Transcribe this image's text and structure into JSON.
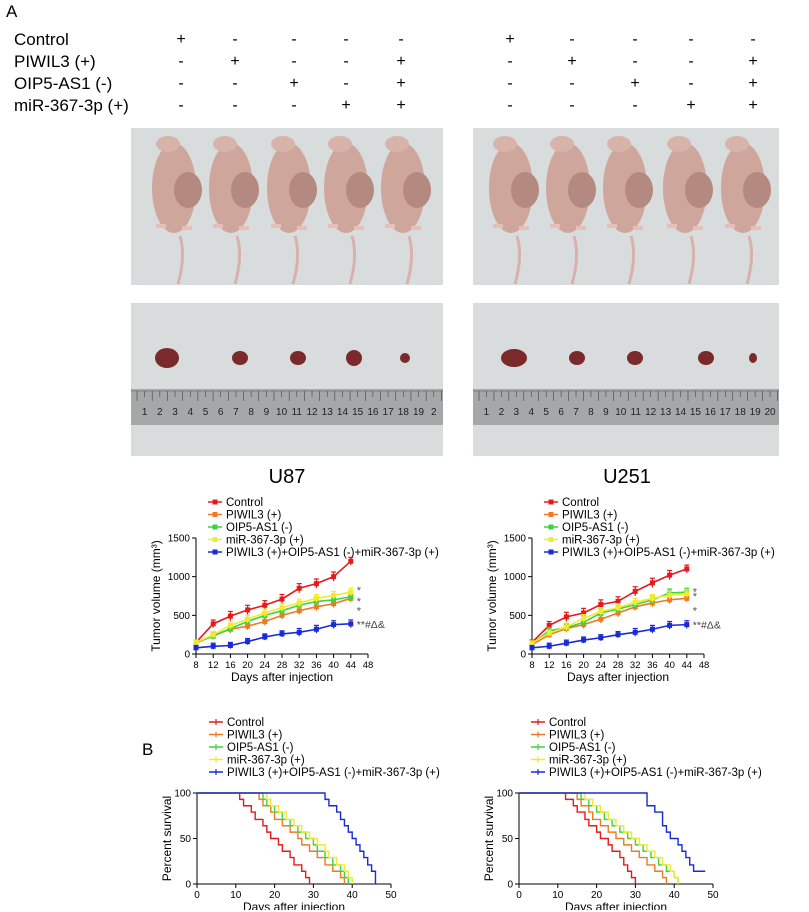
{
  "panel_a_label": "A",
  "panel_b_label": "B",
  "groups_table": {
    "rows": [
      "Control",
      "PIWIL3 (+)",
      "OIP5-AS1 (-)",
      "miR-367-3p (+)"
    ],
    "columns": [
      [
        "+",
        "-",
        "-",
        "-"
      ],
      [
        "-",
        "+",
        "-",
        "-"
      ],
      [
        "-",
        "-",
        "+",
        "-"
      ],
      [
        "-",
        "-",
        "-",
        "+"
      ],
      [
        "-",
        "+",
        "+",
        "+"
      ]
    ]
  },
  "cell_lines": [
    "U87",
    "U251"
  ],
  "photos": {
    "mice_photo_note": "nude mice with xenograft tumors",
    "tumor_photo_note": "excised tumors next to ruler",
    "ruler_numbers_u87": [
      "1",
      "2",
      "3",
      "4",
      "5",
      "6",
      "7",
      "8",
      "9",
      "10",
      "11",
      "12",
      "13",
      "14",
      "15",
      "16",
      "17",
      "18",
      "19",
      "2"
    ],
    "ruler_numbers_u251": [
      "1",
      "2",
      "3",
      "4",
      "5",
      "6",
      "7",
      "8",
      "9",
      "10",
      "11",
      "12",
      "13",
      "14",
      "15",
      "16",
      "17",
      "18",
      "19",
      "20"
    ]
  },
  "colors": {
    "control": "#e41a1c",
    "piwil3": "#f07a23",
    "oip5": "#3fd33f",
    "mir": "#f2ea2b",
    "combo": "#1a2bd6",
    "photo_bg": "#d9dcdc",
    "tumor": "#7a2a2a",
    "ruler": "#a4a8a8"
  },
  "chart_data": [
    {
      "id": "u87_volume",
      "type": "line",
      "title": "U87",
      "xlabel": "Days after injection",
      "ylabel": "Tumor volume (mm³)",
      "xlim": [
        8,
        48
      ],
      "ylim": [
        0,
        1500
      ],
      "xticks": [
        "8",
        "12",
        "16",
        "20",
        "24",
        "28",
        "32",
        "36",
        "40",
        "44",
        "48"
      ],
      "yticks": [
        "0",
        "500",
        "1000",
        "1500"
      ],
      "x": [
        8,
        12,
        16,
        20,
        24,
        28,
        32,
        36,
        40,
        44
      ],
      "series": [
        {
          "name": "Control",
          "values": [
            150,
            390,
            490,
            570,
            630,
            710,
            850,
            910,
            1000,
            1200
          ],
          "error": [
            30,
            50,
            60,
            60,
            60,
            60,
            60,
            60,
            60,
            50
          ]
        },
        {
          "name": "PIWIL3 (+)",
          "values": [
            140,
            240,
            320,
            360,
            420,
            500,
            560,
            610,
            650,
            720
          ],
          "error": [
            30,
            40,
            50,
            50,
            50,
            50,
            50,
            50,
            50,
            50
          ]
        },
        {
          "name": "OIP5-AS1 (-)",
          "values": [
            150,
            230,
            330,
            420,
            500,
            560,
            630,
            680,
            700,
            740
          ],
          "error": [
            30,
            40,
            50,
            50,
            50,
            50,
            50,
            50,
            50,
            50
          ]
        },
        {
          "name": "miR-367-3p (+)",
          "values": [
            150,
            250,
            370,
            450,
            530,
            600,
            660,
            720,
            760,
            800
          ],
          "error": [
            30,
            40,
            50,
            50,
            50,
            50,
            50,
            50,
            50,
            50
          ]
        },
        {
          "name": "PIWIL3 (+)+OIP5-AS1 (-)+miR-367-3p (+)",
          "values": [
            80,
            100,
            110,
            160,
            220,
            260,
            280,
            320,
            380,
            390
          ],
          "error": [
            30,
            40,
            40,
            40,
            40,
            40,
            50,
            50,
            50,
            50
          ]
        }
      ],
      "annotations": [
        "*",
        "*",
        "*",
        "**#Δ&"
      ]
    },
    {
      "id": "u251_volume",
      "type": "line",
      "title": "U251",
      "xlabel": "Days after injection",
      "ylabel": "Tumor volume (mm³)",
      "xlim": [
        8,
        48
      ],
      "ylim": [
        0,
        1500
      ],
      "xticks": [
        "8",
        "12",
        "16",
        "20",
        "24",
        "28",
        "32",
        "36",
        "40",
        "44",
        "48"
      ],
      "yticks": [
        "0",
        "500",
        "1000",
        "1500"
      ],
      "x": [
        8,
        12,
        16,
        20,
        24,
        28,
        32,
        36,
        40,
        44
      ],
      "series": [
        {
          "name": "Control",
          "values": [
            150,
            370,
            480,
            530,
            640,
            680,
            810,
            920,
            1020,
            1100
          ],
          "error": [
            30,
            50,
            60,
            60,
            60,
            60,
            60,
            60,
            60,
            50
          ]
        },
        {
          "name": "PIWIL3 (+)",
          "values": [
            120,
            250,
            330,
            380,
            450,
            530,
            610,
            660,
            700,
            720
          ],
          "error": [
            30,
            40,
            50,
            50,
            50,
            50,
            50,
            50,
            50,
            50
          ]
        },
        {
          "name": "OIP5-AS1 (-)",
          "values": [
            130,
            300,
            340,
            410,
            530,
            580,
            640,
            700,
            790,
            800
          ],
          "error": [
            30,
            40,
            50,
            50,
            50,
            50,
            50,
            50,
            50,
            50
          ]
        },
        {
          "name": "miR-367-3p (+)",
          "values": [
            140,
            270,
            350,
            460,
            550,
            600,
            670,
            720,
            760,
            780
          ],
          "error": [
            30,
            40,
            50,
            50,
            50,
            50,
            50,
            50,
            50,
            50
          ]
        },
        {
          "name": "PIWIL3 (+)+OIP5-AS1 (-)+miR-367-3p (+)",
          "values": [
            80,
            100,
            140,
            180,
            210,
            250,
            280,
            320,
            370,
            380
          ],
          "error": [
            30,
            40,
            40,
            40,
            40,
            40,
            50,
            50,
            50,
            50
          ]
        }
      ],
      "annotations": [
        "*",
        "*",
        "*",
        "**#Δ&"
      ]
    },
    {
      "id": "u87_survival",
      "type": "line",
      "subtype": "kaplan-meier",
      "xlabel": "Days after injection",
      "ylabel": "Percent survival",
      "xlim": [
        0,
        50
      ],
      "ylim": [
        0,
        100
      ],
      "xticks": [
        "0",
        "10",
        "20",
        "30",
        "40",
        "50"
      ],
      "yticks": [
        "0",
        "50",
        "100"
      ],
      "series": [
        {
          "name": "Control",
          "steps": [
            [
              0,
              100
            ],
            [
              10,
              100
            ],
            [
              11,
              93
            ],
            [
              12,
              86
            ],
            [
              14,
              79
            ],
            [
              15,
              71
            ],
            [
              17,
              64
            ],
            [
              18,
              57
            ],
            [
              19,
              50
            ],
            [
              21,
              43
            ],
            [
              22,
              36
            ],
            [
              24,
              29
            ],
            [
              25,
              21
            ],
            [
              27,
              14
            ],
            [
              28,
              7
            ],
            [
              29,
              0
            ]
          ]
        },
        {
          "name": "PIWIL3 (+)",
          "steps": [
            [
              0,
              100
            ],
            [
              14,
              100
            ],
            [
              16,
              93
            ],
            [
              17,
              86
            ],
            [
              19,
              79
            ],
            [
              20,
              71
            ],
            [
              22,
              64
            ],
            [
              24,
              57
            ],
            [
              26,
              50
            ],
            [
              27,
              43
            ],
            [
              29,
              36
            ],
            [
              31,
              29
            ],
            [
              33,
              21
            ],
            [
              35,
              14
            ],
            [
              37,
              7
            ],
            [
              38,
              0
            ]
          ]
        },
        {
          "name": "OIP5-AS1 (-)",
          "steps": [
            [
              0,
              100
            ],
            [
              15,
              100
            ],
            [
              17,
              93
            ],
            [
              18,
              86
            ],
            [
              20,
              79
            ],
            [
              22,
              71
            ],
            [
              24,
              64
            ],
            [
              26,
              57
            ],
            [
              28,
              50
            ],
            [
              30,
              43
            ],
            [
              31,
              36
            ],
            [
              33,
              29
            ],
            [
              35,
              21
            ],
            [
              37,
              14
            ],
            [
              38,
              7
            ],
            [
              39,
              0
            ]
          ]
        },
        {
          "name": "miR-367-3p (+)",
          "steps": [
            [
              0,
              100
            ],
            [
              16,
              100
            ],
            [
              18,
              93
            ],
            [
              19,
              86
            ],
            [
              21,
              79
            ],
            [
              23,
              71
            ],
            [
              25,
              64
            ],
            [
              27,
              57
            ],
            [
              29,
              50
            ],
            [
              31,
              43
            ],
            [
              33,
              36
            ],
            [
              34,
              29
            ],
            [
              36,
              21
            ],
            [
              38,
              14
            ],
            [
              39,
              7
            ],
            [
              40,
              0
            ]
          ]
        },
        {
          "name": "PIWIL3 (+)+OIP5-AS1 (-)+miR-367-3p (+)",
          "steps": [
            [
              0,
              100
            ],
            [
              32,
              100
            ],
            [
              33,
              93
            ],
            [
              34,
              86
            ],
            [
              36,
              79
            ],
            [
              37,
              71
            ],
            [
              38,
              64
            ],
            [
              39,
              57
            ],
            [
              40,
              50
            ],
            [
              41,
              43
            ],
            [
              42,
              36
            ],
            [
              43,
              29
            ],
            [
              44,
              21
            ],
            [
              45,
              14
            ],
            [
              46,
              0
            ]
          ]
        }
      ]
    },
    {
      "id": "u251_survival",
      "type": "line",
      "subtype": "kaplan-meier",
      "xlabel": "Days after injection",
      "ylabel": "Percent survival",
      "xlim": [
        0,
        50
      ],
      "ylim": [
        0,
        100
      ],
      "xticks": [
        "0",
        "10",
        "20",
        "30",
        "40",
        "50"
      ],
      "yticks": [
        "0",
        "50",
        "100"
      ],
      "series": [
        {
          "name": "Control",
          "steps": [
            [
              0,
              100
            ],
            [
              11,
              100
            ],
            [
              12,
              93
            ],
            [
              14,
              86
            ],
            [
              15,
              79
            ],
            [
              17,
              71
            ],
            [
              18,
              64
            ],
            [
              20,
              57
            ],
            [
              21,
              50
            ],
            [
              23,
              43
            ],
            [
              24,
              36
            ],
            [
              26,
              29
            ],
            [
              27,
              21
            ],
            [
              28,
              14
            ],
            [
              29,
              7
            ],
            [
              30,
              0
            ]
          ]
        },
        {
          "name": "PIWIL3 (+)",
          "steps": [
            [
              0,
              100
            ],
            [
              13,
              100
            ],
            [
              15,
              93
            ],
            [
              16,
              86
            ],
            [
              18,
              79
            ],
            [
              19,
              71
            ],
            [
              21,
              64
            ],
            [
              23,
              57
            ],
            [
              25,
              50
            ],
            [
              27,
              43
            ],
            [
              29,
              36
            ],
            [
              31,
              29
            ],
            [
              33,
              21
            ],
            [
              35,
              14
            ],
            [
              37,
              7
            ],
            [
              38,
              0
            ]
          ]
        },
        {
          "name": "OIP5-AS1 (-)",
          "steps": [
            [
              0,
              100
            ],
            [
              14,
              100
            ],
            [
              16,
              93
            ],
            [
              18,
              86
            ],
            [
              20,
              79
            ],
            [
              22,
              71
            ],
            [
              24,
              64
            ],
            [
              26,
              57
            ],
            [
              28,
              50
            ],
            [
              30,
              43
            ],
            [
              32,
              36
            ],
            [
              34,
              29
            ],
            [
              36,
              21
            ],
            [
              38,
              14
            ],
            [
              40,
              7
            ],
            [
              41,
              0
            ]
          ]
        },
        {
          "name": "miR-367-3p (+)",
          "steps": [
            [
              0,
              100
            ],
            [
              15,
              100
            ],
            [
              17,
              93
            ],
            [
              19,
              86
            ],
            [
              21,
              79
            ],
            [
              23,
              71
            ],
            [
              25,
              64
            ],
            [
              27,
              57
            ],
            [
              29,
              50
            ],
            [
              31,
              43
            ],
            [
              33,
              36
            ],
            [
              35,
              29
            ],
            [
              37,
              21
            ],
            [
              39,
              14
            ],
            [
              40,
              7
            ],
            [
              41,
              0
            ]
          ]
        },
        {
          "name": "PIWIL3 (+)+OIP5-AS1 (-)+miR-367-3p (+)",
          "steps": [
            [
              0,
              100
            ],
            [
              32,
              100
            ],
            [
              33,
              86
            ],
            [
              35,
              79
            ],
            [
              37,
              64
            ],
            [
              38,
              57
            ],
            [
              39,
              50
            ],
            [
              41,
              43
            ],
            [
              42,
              36
            ],
            [
              43,
              29
            ],
            [
              44,
              21
            ],
            [
              45,
              14
            ],
            [
              48,
              14
            ]
          ]
        }
      ]
    }
  ]
}
